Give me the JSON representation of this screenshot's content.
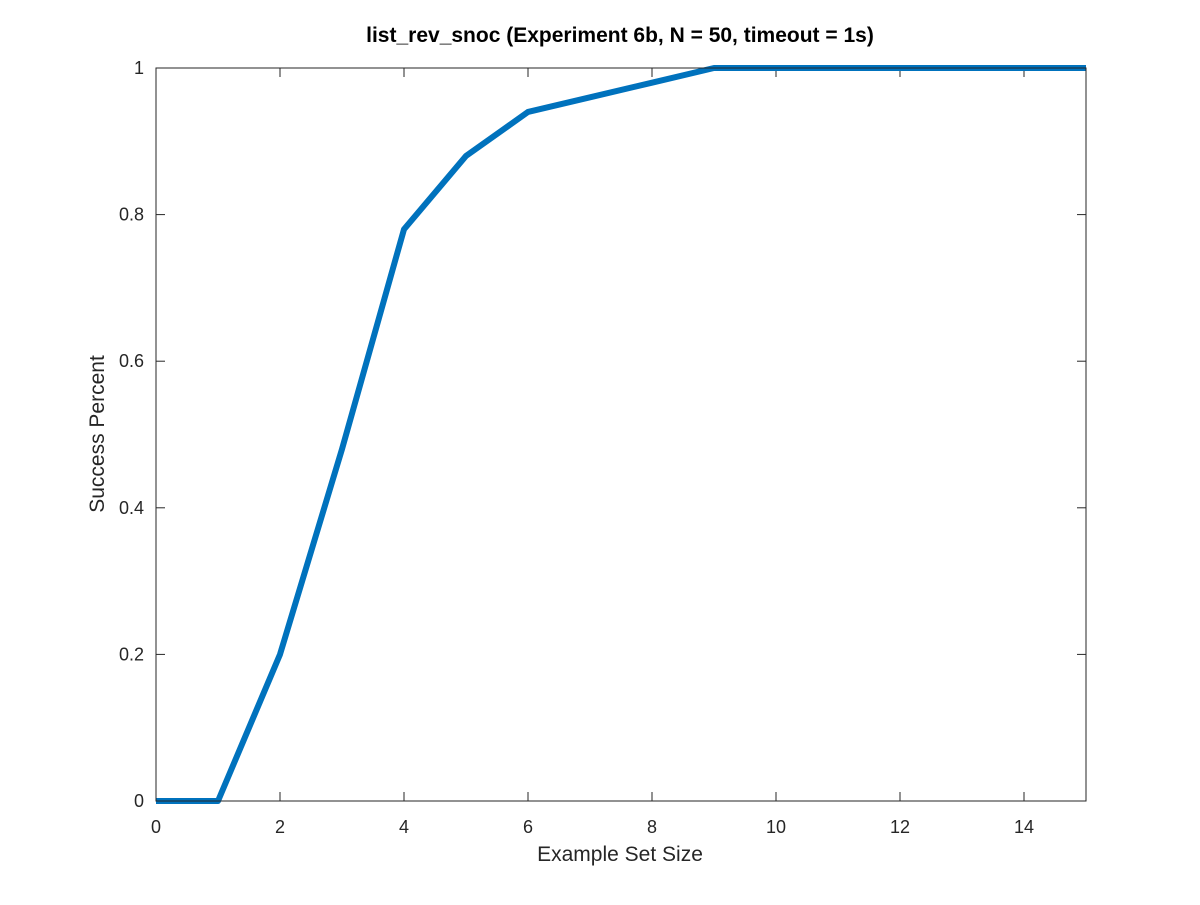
{
  "chart_data": {
    "type": "line",
    "title": "list_rev_snoc (Experiment 6b, N = 50, timeout = 1s)",
    "xlabel": "Example Set Size",
    "ylabel": "Success Percent",
    "xlim": [
      0,
      15
    ],
    "ylim": [
      0,
      1
    ],
    "xticks": [
      0,
      2,
      4,
      6,
      8,
      10,
      12,
      14
    ],
    "yticks": [
      0,
      0.2,
      0.4,
      0.6,
      0.8,
      1
    ],
    "xtick_labels": [
      "0",
      "2",
      "4",
      "6",
      "8",
      "10",
      "12",
      "14"
    ],
    "ytick_labels": [
      "0",
      "0.2",
      "0.4",
      "0.6",
      "0.8",
      "1"
    ],
    "grid": false,
    "series": [
      {
        "color": "#0072BD",
        "x": [
          0,
          1,
          2,
          3,
          4,
          5,
          6,
          7,
          8,
          9,
          10,
          11,
          12,
          13,
          14,
          15
        ],
        "y": [
          0,
          0,
          0.2,
          0.48,
          0.78,
          0.88,
          0.94,
          0.96,
          0.98,
          1,
          1,
          1,
          1,
          1,
          1,
          1
        ]
      }
    ]
  }
}
